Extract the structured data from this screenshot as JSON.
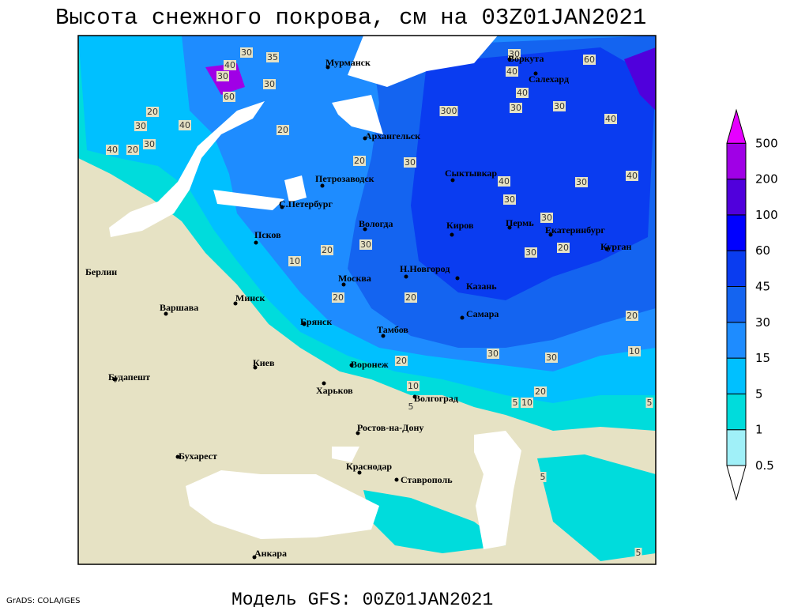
{
  "title": "Высота снежного покрова, см на 03Z01JAN2021",
  "footer": "Модель GFS: 00Z01JAN2021",
  "credit": "GrADS: COLA/IGES",
  "legend": {
    "levels": [
      0.5,
      1,
      5,
      15,
      30,
      45,
      60,
      100,
      200,
      500
    ],
    "colors": [
      "#ffffff",
      "#a0f0f8",
      "#00dcdc",
      "#00c0ff",
      "#1e8cff",
      "#1464f0",
      "#0a3cf0",
      "#0000ff",
      "#5000dc",
      "#a000e6",
      "#e600ff"
    ]
  },
  "cities": [
    "Мурманск",
    "Воркута",
    "Салехард",
    "Архангельск",
    "Сыктывкар",
    "Петрозаводск",
    "С.Петербург",
    "Вологда",
    "Киров",
    "Пермь",
    "Екатеринбург",
    "Курган",
    "Псков",
    "Н.Новгород",
    "Казань",
    "Москва",
    "Берлин",
    "Варшава",
    "Минск",
    "Брянск",
    "Тамбов",
    "Самара",
    "Воронеж",
    "Киев",
    "Будапешт",
    "Харьков",
    "Волгоград",
    "Ростов-на-Дону",
    "Бухарест",
    "Краснодар",
    "Ставрополь",
    "Анкара"
  ],
  "contour_labels": [
    30,
    35,
    40,
    30,
    60,
    20,
    40,
    30,
    30,
    40,
    20,
    30,
    20,
    20,
    30,
    300,
    30,
    40,
    60,
    40,
    30,
    30,
    40,
    40,
    30,
    40,
    30,
    30,
    30,
    20,
    20,
    30,
    10,
    20,
    20,
    20,
    10,
    30,
    30,
    10,
    20,
    5,
    5,
    10,
    5,
    5,
    5,
    20
  ]
}
